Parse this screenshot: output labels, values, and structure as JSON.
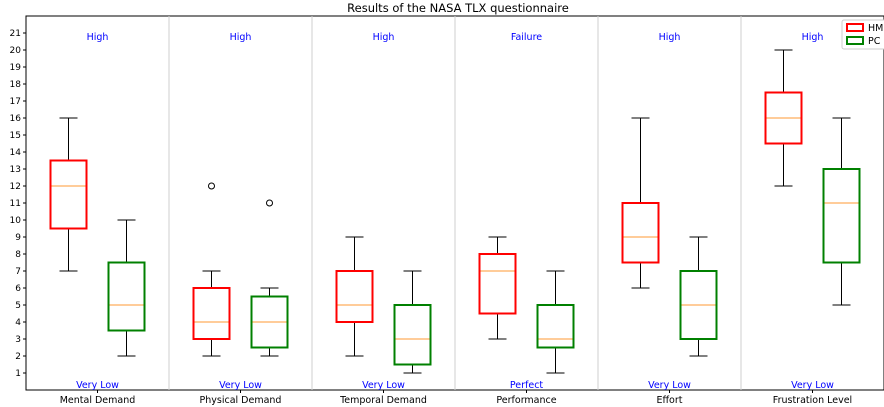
{
  "chart_data": {
    "type": "boxplot",
    "title": "Results of the NASA TLX questionnaire",
    "xlabel": "",
    "ylabel": "",
    "ylim": [
      0,
      22
    ],
    "yticks": [
      1,
      2,
      3,
      4,
      5,
      6,
      7,
      8,
      9,
      10,
      11,
      12,
      13,
      14,
      15,
      16,
      17,
      18,
      19,
      20,
      21
    ],
    "grid": "vertical separators",
    "legend_position": "top-right",
    "categories": [
      "Mental Demand",
      "Physical Demand",
      "Temporal Demand",
      "Performance",
      "Effort",
      "Frustration Level"
    ],
    "top_labels": [
      "High",
      "High",
      "High",
      "Failure",
      "High",
      "High"
    ],
    "bottom_labels": [
      "Very Low",
      "Very Low",
      "Very Low",
      "Perfect",
      "Very Low",
      "Very Low"
    ],
    "series": [
      {
        "name": "HM",
        "color": "#ff0000",
        "boxes": [
          {
            "whisker_low": 7,
            "q1": 9.5,
            "median": 12,
            "q3": 13.5,
            "whisker_high": 16,
            "outliers": []
          },
          {
            "whisker_low": 2,
            "q1": 3,
            "median": 4,
            "q3": 6,
            "whisker_high": 7,
            "outliers": [
              12
            ]
          },
          {
            "whisker_low": 2,
            "q1": 4,
            "median": 5,
            "q3": 7,
            "whisker_high": 9,
            "outliers": []
          },
          {
            "whisker_low": 3,
            "q1": 4.5,
            "median": 7,
            "q3": 8,
            "whisker_high": 9,
            "outliers": []
          },
          {
            "whisker_low": 6,
            "q1": 7.5,
            "median": 9,
            "q3": 11,
            "whisker_high": 16,
            "outliers": []
          },
          {
            "whisker_low": 12,
            "q1": 14.5,
            "median": 16,
            "q3": 17.5,
            "whisker_high": 20,
            "outliers": []
          }
        ]
      },
      {
        "name": "PC",
        "color": "#008000",
        "boxes": [
          {
            "whisker_low": 2,
            "q1": 3.5,
            "median": 5,
            "q3": 7.5,
            "whisker_high": 10,
            "outliers": []
          },
          {
            "whisker_low": 2,
            "q1": 2.5,
            "median": 4,
            "q3": 5.5,
            "whisker_high": 6,
            "outliers": [
              11
            ]
          },
          {
            "whisker_low": 1,
            "q1": 1.5,
            "median": 3,
            "q3": 5,
            "whisker_high": 7,
            "outliers": []
          },
          {
            "whisker_low": 1,
            "q1": 2.5,
            "median": 3,
            "q3": 5,
            "whisker_high": 7,
            "outliers": []
          },
          {
            "whisker_low": 2,
            "q1": 3,
            "median": 5,
            "q3": 7,
            "whisker_high": 9,
            "outliers": []
          },
          {
            "whisker_low": 5,
            "q1": 7.5,
            "median": 11,
            "q3": 13,
            "whisker_high": 16,
            "outliers": []
          }
        ]
      }
    ],
    "median_color": "#ff9933",
    "annotation_color": "#0000ff"
  }
}
